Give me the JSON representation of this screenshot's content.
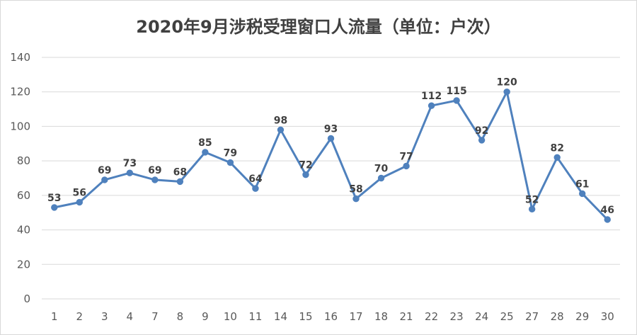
{
  "chart_data": {
    "type": "line",
    "title": "2020年9月涉税受理窗口人流量（单位：户次）",
    "xlabel": "",
    "ylabel": "",
    "categories": [
      "1",
      "2",
      "3",
      "4",
      "7",
      "8",
      "9",
      "10",
      "11",
      "14",
      "15",
      "16",
      "17",
      "18",
      "21",
      "22",
      "23",
      "24",
      "25",
      "27",
      "28",
      "29",
      "30"
    ],
    "series": [
      {
        "values": [
          53,
          56,
          69,
          73,
          69,
          68,
          85,
          79,
          64,
          98,
          72,
          93,
          58,
          70,
          77,
          112,
          115,
          92,
          120,
          52,
          82,
          61,
          46
        ],
        "color": "#4f81bd"
      }
    ],
    "ylim": [
      0,
      140
    ],
    "yticks": [
      "0",
      "20",
      "40",
      "60",
      "80",
      "100",
      "120",
      "140"
    ],
    "grid": true,
    "legend": "none",
    "data_labels": true
  }
}
